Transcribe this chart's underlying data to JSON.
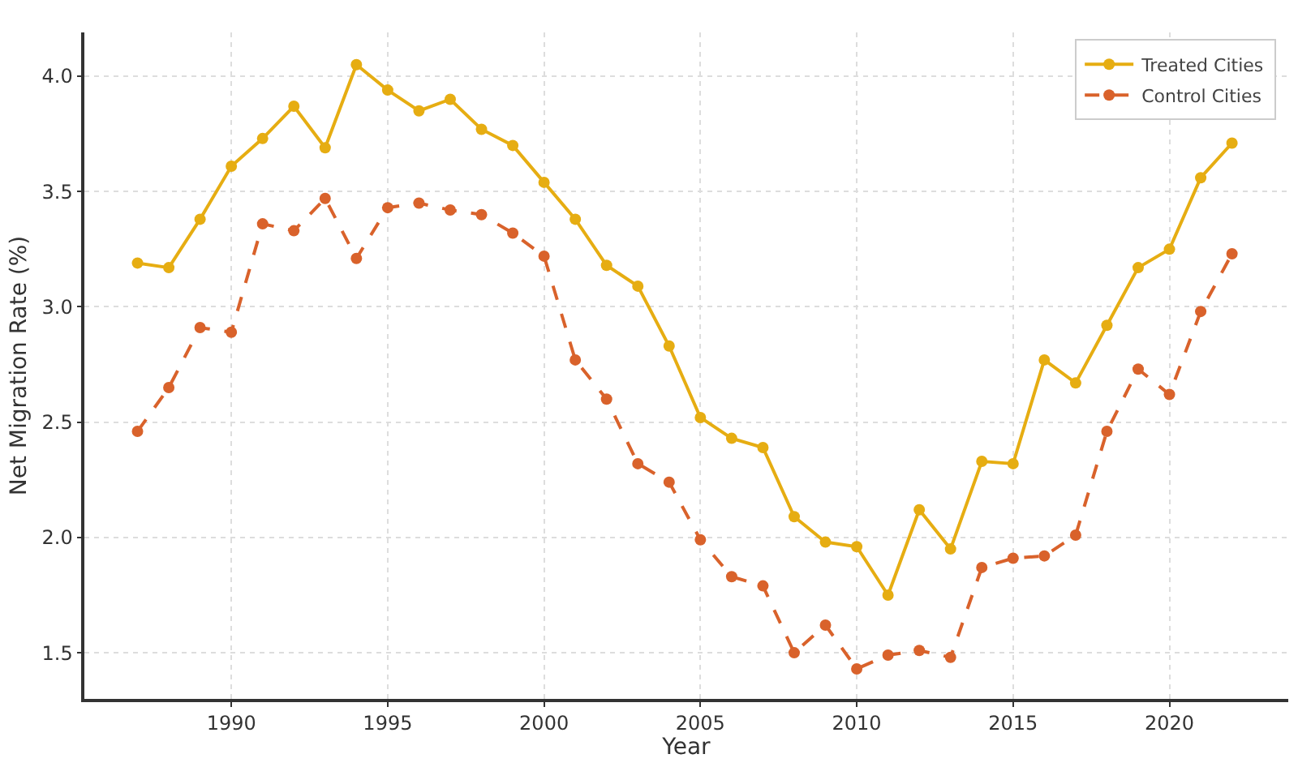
{
  "chart_data": {
    "type": "line",
    "xlabel": "Year",
    "ylabel": "Net Migration Rate (%)",
    "x": [
      1987,
      1988,
      1989,
      1990,
      1991,
      1992,
      1993,
      1994,
      1995,
      1996,
      1997,
      1998,
      1999,
      2000,
      2001,
      2002,
      2003,
      2004,
      2005,
      2006,
      2007,
      2008,
      2009,
      2010,
      2011,
      2012,
      2013,
      2014,
      2015,
      2016,
      2017,
      2018,
      2019,
      2020,
      2021,
      2022
    ],
    "series": [
      {
        "name": "Treated Cities",
        "color": "#e6ad12",
        "line_style": "solid",
        "values": [
          3.19,
          3.17,
          3.38,
          3.61,
          3.73,
          3.87,
          3.69,
          4.05,
          3.94,
          3.85,
          3.9,
          3.77,
          3.7,
          3.54,
          3.38,
          3.18,
          3.09,
          2.83,
          2.52,
          2.43,
          2.39,
          2.09,
          1.98,
          1.96,
          1.75,
          2.12,
          1.95,
          2.33,
          2.32,
          2.77,
          2.67,
          2.92,
          3.17,
          3.25,
          3.56,
          3.71
        ]
      },
      {
        "name": "Control Cities",
        "color": "#d9622b",
        "line_style": "dashed",
        "values": [
          2.46,
          2.65,
          2.91,
          2.89,
          3.36,
          3.33,
          3.47,
          3.21,
          3.43,
          3.45,
          3.42,
          3.4,
          3.32,
          3.22,
          2.77,
          2.6,
          2.32,
          2.24,
          1.99,
          1.83,
          1.79,
          1.5,
          1.62,
          1.43,
          1.49,
          1.51,
          1.48,
          1.87,
          1.91,
          1.92,
          2.01,
          2.46,
          2.73,
          2.62,
          2.98,
          3.23
        ]
      }
    ],
    "xlim": [
      1985.3,
      2023.8
    ],
    "xticks": [
      1990,
      1995,
      2000,
      2005,
      2010,
      2015,
      2020
    ],
    "ylim": [
      1.3,
      4.19
    ],
    "yticks": [
      {
        "value": 1.5,
        "label": "1.5"
      },
      {
        "value": 2.0,
        "label": "2.0"
      },
      {
        "value": 2.5,
        "label": "2.5"
      },
      {
        "value": 3.0,
        "label": "3.0"
      },
      {
        "value": 3.5,
        "label": "3.5"
      },
      {
        "value": 4.0,
        "label": "4.0"
      }
    ],
    "grid": true,
    "legend": "top right",
    "marker": "circle"
  }
}
